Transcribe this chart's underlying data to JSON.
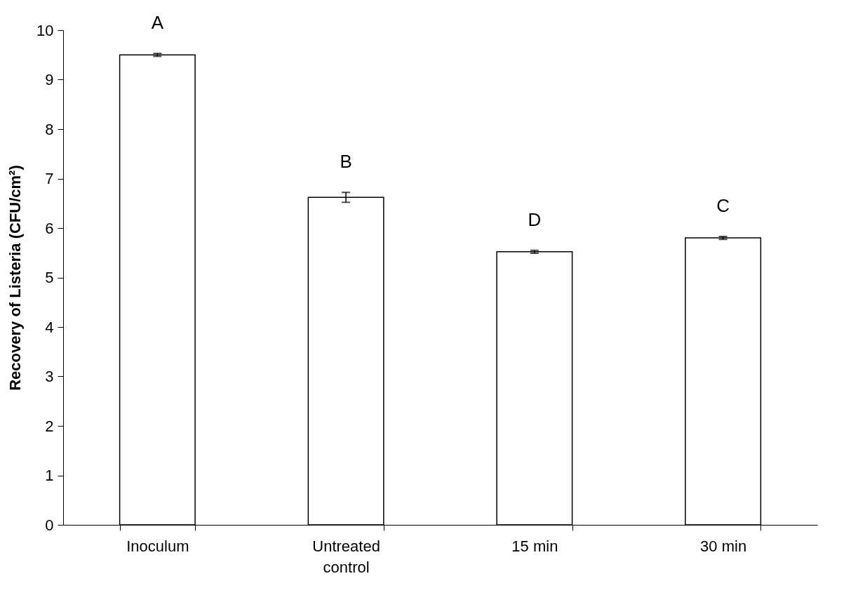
{
  "chart_data": {
    "type": "bar",
    "ylabel": "Recovery of Listeria (CFU/cm²)",
    "categories": [
      "Inoculum",
      "Untreated control",
      "15 min",
      "30 min"
    ],
    "values": [
      9.5,
      6.62,
      5.52,
      5.8
    ],
    "errors": [
      0.03,
      0.1,
      0.03,
      0.03
    ],
    "color": "#ffffff",
    "ylim": [
      0,
      10
    ],
    "yticks": [
      0,
      1,
      2,
      3,
      4,
      5,
      6,
      7,
      8,
      9,
      10
    ],
    "grid": false,
    "annotations": [
      "A",
      "B",
      "D",
      "C"
    ]
  }
}
